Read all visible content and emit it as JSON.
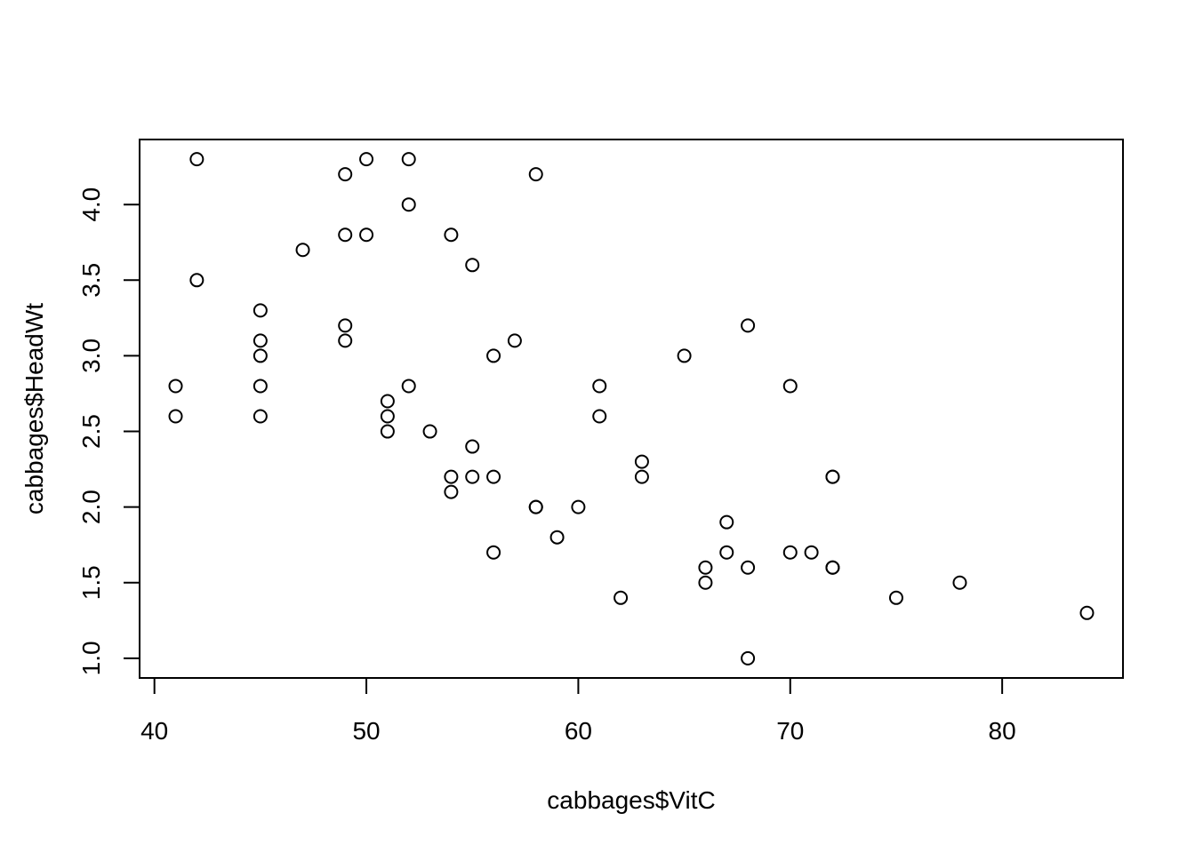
{
  "chart_data": {
    "type": "scatter",
    "title": "",
    "xlabel": "cabbages$VitC",
    "ylabel": "cabbages$HeadWt",
    "xlim": [
      39.3,
      85.7
    ],
    "ylim": [
      0.87,
      4.43
    ],
    "x_ticks": [
      40,
      50,
      60,
      70,
      80
    ],
    "x_tick_labels": [
      "40",
      "50",
      "60",
      "70",
      "80"
    ],
    "y_ticks": [
      1.0,
      1.5,
      2.0,
      2.5,
      3.0,
      3.5,
      4.0
    ],
    "y_tick_labels": [
      "1.0",
      "1.5",
      "2.0",
      "2.5",
      "3.0",
      "3.5",
      "4.0"
    ],
    "grid": false,
    "marker": "open-circle",
    "points": [
      [
        51,
        2.5
      ],
      [
        55,
        2.2
      ],
      [
        45,
        3.1
      ],
      [
        42,
        4.3
      ],
      [
        53,
        2.5
      ],
      [
        50,
        4.3
      ],
      [
        50,
        3.8
      ],
      [
        52,
        4.3
      ],
      [
        56,
        1.7
      ],
      [
        49,
        3.1
      ],
      [
        45,
        3.0
      ],
      [
        51,
        2.7
      ],
      [
        45,
        2.6
      ],
      [
        49,
        3.2
      ],
      [
        45,
        2.8
      ],
      [
        41,
        2.6
      ],
      [
        45,
        3.3
      ],
      [
        55,
        3.6
      ],
      [
        51,
        2.6
      ],
      [
        42,
        3.5
      ],
      [
        47,
        3.7
      ],
      [
        54,
        2.1
      ],
      [
        54,
        2.2
      ],
      [
        52,
        2.8
      ],
      [
        41,
        2.8
      ],
      [
        55,
        2.4
      ],
      [
        49,
        3.8
      ],
      [
        49,
        4.2
      ],
      [
        52,
        4.0
      ],
      [
        54,
        3.8
      ],
      [
        56,
        2.2
      ],
      [
        58,
        4.2
      ],
      [
        57,
        3.1
      ],
      [
        56,
        3.0
      ],
      [
        58,
        2.0
      ],
      [
        61,
        2.6
      ],
      [
        61,
        2.8
      ],
      [
        59,
        1.8
      ],
      [
        58,
        2.0
      ],
      [
        60,
        2.0
      ],
      [
        62,
        1.4
      ],
      [
        63,
        2.3
      ],
      [
        63,
        2.2
      ],
      [
        65,
        3.0
      ],
      [
        66,
        1.5
      ],
      [
        66,
        1.6
      ],
      [
        67,
        1.7
      ],
      [
        67,
        1.9
      ],
      [
        68,
        1.6
      ],
      [
        68,
        1.0
      ],
      [
        68,
        3.2
      ],
      [
        70,
        2.8
      ],
      [
        70,
        1.7
      ],
      [
        71,
        1.7
      ],
      [
        72,
        2.2
      ],
      [
        72,
        2.2
      ],
      [
        72,
        1.6
      ],
      [
        72,
        1.6
      ],
      [
        75,
        1.4
      ],
      [
        78,
        1.5
      ],
      [
        84,
        1.3
      ]
    ]
  }
}
